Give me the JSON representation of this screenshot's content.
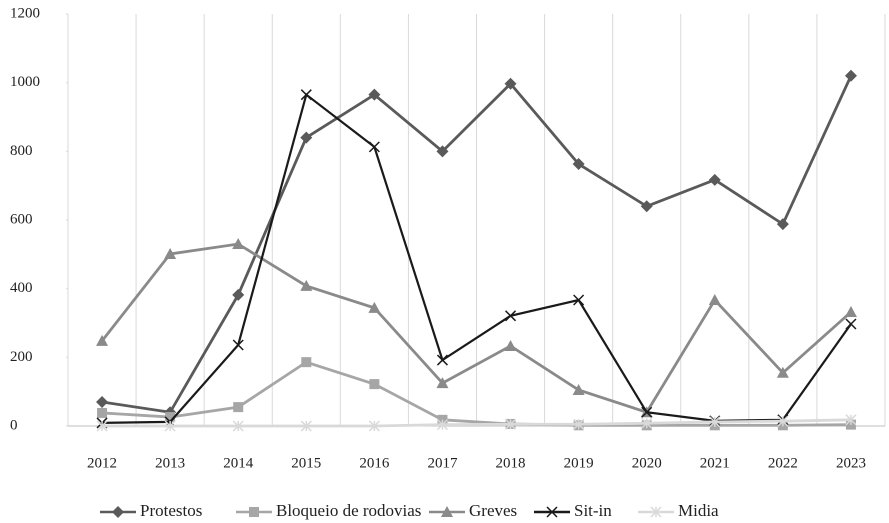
{
  "chart_data": {
    "type": "line",
    "categories": [
      "2012",
      "2013",
      "2014",
      "2015",
      "2016",
      "2017",
      "2018",
      "2019",
      "2020",
      "2021",
      "2022",
      "2023"
    ],
    "ylim": [
      0,
      1200
    ],
    "yticks": [
      0,
      200,
      400,
      600,
      800,
      1000,
      1200
    ],
    "grid": "vertical",
    "legend": "bottom",
    "series": [
      {
        "name": "Protestos",
        "color": "#5a5a5a",
        "marker": "diamond",
        "values": [
          70,
          40,
          382,
          840,
          965,
          800,
          997,
          763,
          640,
          717,
          588,
          1020
        ]
      },
      {
        "name": "Bloqueio de rodovias",
        "color": "#a6a6a6",
        "marker": "square",
        "values": [
          38,
          26,
          55,
          186,
          122,
          18,
          6,
          2,
          2,
          2,
          2,
          4
        ]
      },
      {
        "name": "Greves",
        "color": "#8a8a8a",
        "marker": "triangle",
        "values": [
          248,
          501,
          530,
          408,
          344,
          125,
          233,
          105,
          40,
          367,
          155,
          332
        ]
      },
      {
        "name": "Sit-in",
        "color": "#1a1a1a",
        "marker": "x",
        "values": [
          9,
          12,
          236,
          965,
          813,
          192,
          321,
          367,
          40,
          15,
          18,
          297
        ]
      },
      {
        "name": "Midia",
        "color": "#d9d9d9",
        "marker": "star",
        "values": [
          0,
          0,
          0,
          0,
          0,
          4,
          5,
          5,
          8,
          12,
          14,
          18
        ]
      }
    ]
  }
}
